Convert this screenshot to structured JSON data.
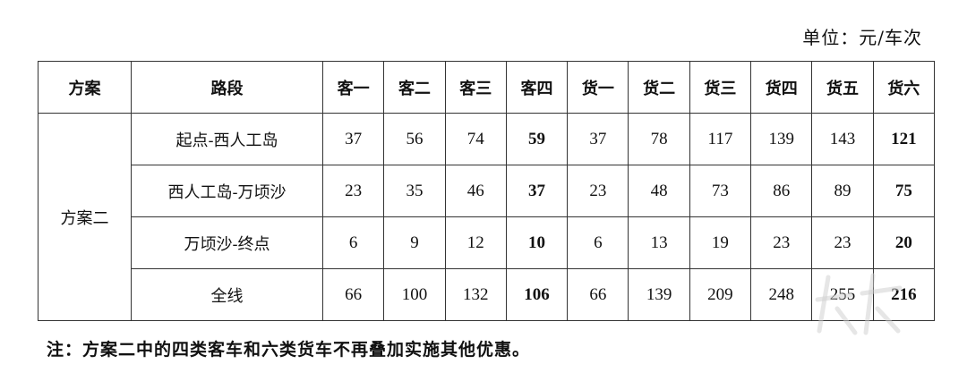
{
  "unit": "单位：元/车次",
  "table": {
    "headers": [
      "方案",
      "路段",
      "客一",
      "客二",
      "客三",
      "客四",
      "货一",
      "货二",
      "货三",
      "货四",
      "货五",
      "货六"
    ],
    "plan": "方案二",
    "bold_columns": [
      3,
      9
    ],
    "rows": [
      {
        "segment": "起点-西人工岛",
        "values": [
          "37",
          "56",
          "74",
          "59",
          "37",
          "78",
          "117",
          "139",
          "143",
          "121"
        ]
      },
      {
        "segment": "西人工岛-万顷沙",
        "values": [
          "23",
          "35",
          "46",
          "37",
          "23",
          "48",
          "73",
          "86",
          "89",
          "75"
        ]
      },
      {
        "segment": "万顷沙-终点",
        "values": [
          "6",
          "9",
          "12",
          "10",
          "6",
          "13",
          "19",
          "23",
          "23",
          "20"
        ]
      },
      {
        "segment": "全线",
        "values": [
          "66",
          "100",
          "132",
          "106",
          "66",
          "139",
          "209",
          "248",
          "255",
          "216"
        ]
      }
    ]
  },
  "note": "注：方案二中的四类客车和六类货车不再叠加实施其他优惠。"
}
